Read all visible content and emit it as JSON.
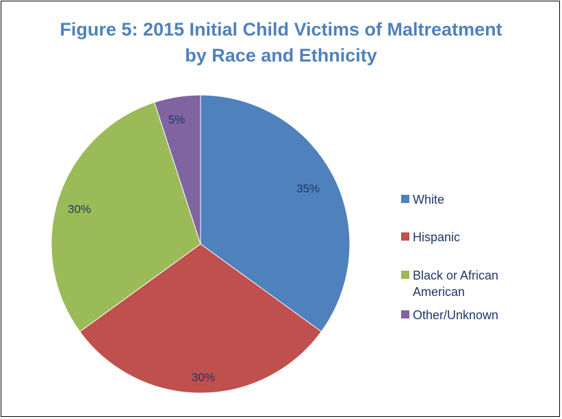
{
  "chart_data": {
    "type": "pie",
    "title_lines": [
      "Figure 5: 2015 Initial Child Victims of Maltreatment",
      "by Race and Ethnicity"
    ],
    "categories": [
      "White",
      "Hispanic",
      "Black or African American",
      "Other/Unknown"
    ],
    "legend_lines": [
      [
        "White"
      ],
      [
        "Hispanic"
      ],
      [
        "Black or African",
        "American"
      ],
      [
        "Other/Unknown"
      ]
    ],
    "values": [
      35,
      30,
      30,
      5
    ],
    "data_labels": [
      "35%",
      "30%",
      "30%",
      "5%"
    ],
    "colors": [
      "#4f81bd",
      "#c0504d",
      "#9bbb59",
      "#8064a2"
    ],
    "start_angle_deg": 0,
    "direction": "clockwise",
    "legend_position": "right"
  }
}
